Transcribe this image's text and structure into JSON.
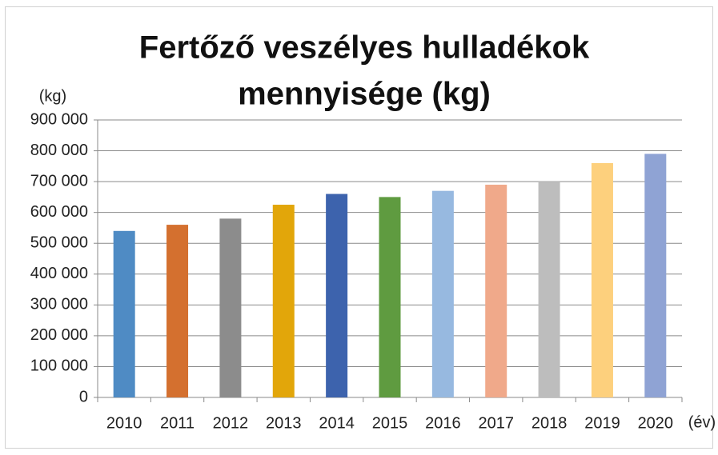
{
  "chart_data": {
    "type": "bar",
    "title": [
      "Fertőző veszélyes hulladékok",
      "mennyisége (kg)"
    ],
    "y_label": "(kg)",
    "x_label": "(év)",
    "categories": [
      "2010",
      "2011",
      "2012",
      "2013",
      "2014",
      "2015",
      "2016",
      "2017",
      "2018",
      "2019",
      "2020"
    ],
    "values": [
      540000,
      560000,
      580000,
      625000,
      660000,
      650000,
      670000,
      690000,
      700000,
      760000,
      790000
    ],
    "colors": [
      "#4f8bc4",
      "#d4702f",
      "#8c8c8c",
      "#e2a60a",
      "#3d63ad",
      "#5f9b40",
      "#97b9e0",
      "#f0a98a",
      "#bdbdbd",
      "#fdd07d",
      "#8fa3d4"
    ],
    "ylim": [
      0,
      900000
    ],
    "yticks": [
      0,
      {
        "value": 100000,
        "label": "100 000"
      },
      {
        "value": 200000,
        "label": "200 000"
      },
      {
        "value": 300000,
        "label": "300 000"
      },
      {
        "value": 400000,
        "label": "400 000"
      },
      {
        "value": 500000,
        "label": "500 000"
      },
      {
        "value": 600000,
        "label": "600 000"
      },
      {
        "value": 700000,
        "label": "700 000"
      },
      {
        "value": 800000,
        "label": "800 000"
      },
      {
        "value": 900000,
        "label": "900 000"
      }
    ],
    "grid": true
  }
}
